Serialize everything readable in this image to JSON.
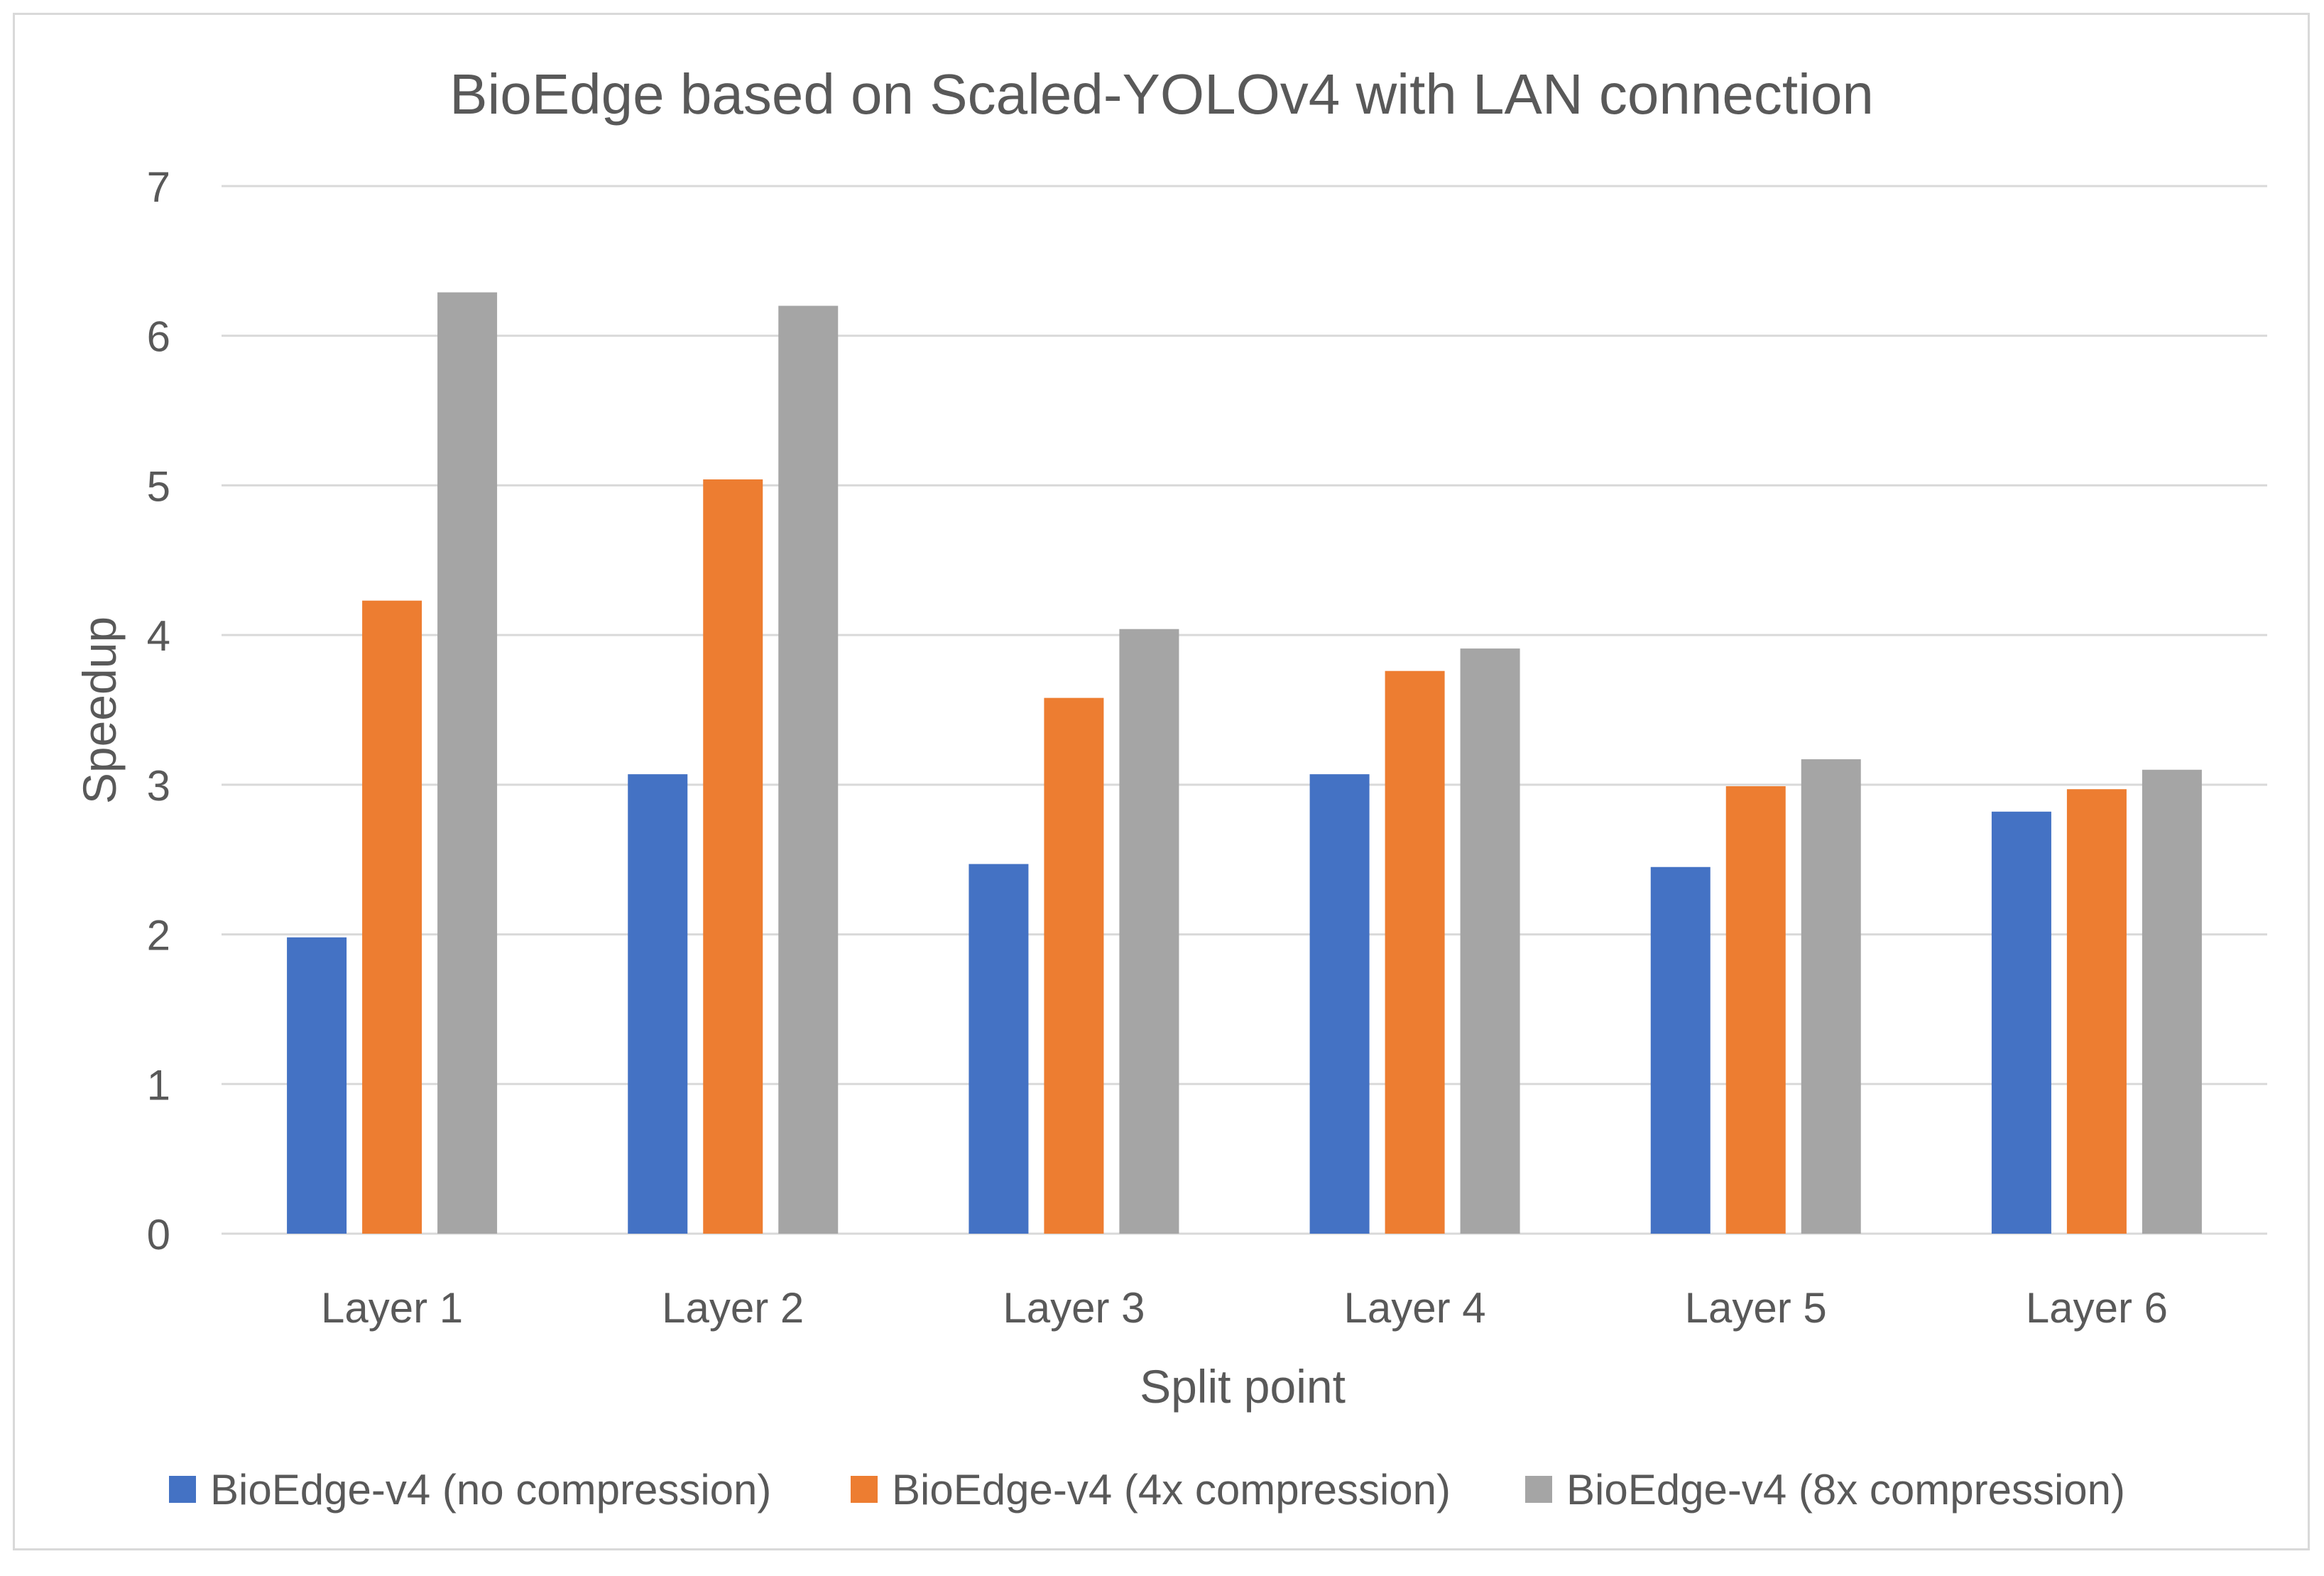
{
  "chart_data": {
    "type": "bar",
    "title": "BioEdge based on Scaled-YOLOv4 with LAN connection",
    "xlabel": "Split point",
    "ylabel": "Speedup",
    "categories": [
      "Layer 1",
      "Layer 2",
      "Layer 3",
      "Layer 4",
      "Layer 5",
      "Layer 6"
    ],
    "ylim": [
      0,
      7
    ],
    "yticks": [
      0,
      1,
      2,
      3,
      4,
      5,
      6,
      7
    ],
    "grid": true,
    "legend_position": "bottom",
    "series": [
      {
        "name": "BioEdge-v4 (no compression)",
        "color": "#4472c4",
        "values": [
          1.98,
          3.07,
          2.47,
          3.07,
          2.45,
          2.82
        ]
      },
      {
        "name": "BioEdge-v4 (4x compression)",
        "color": "#ed7d31",
        "values": [
          4.23,
          5.04,
          3.58,
          3.76,
          2.99,
          2.97
        ]
      },
      {
        "name": "BioEdge-v4 (8x compression)",
        "color": "#a5a5a5",
        "values": [
          6.29,
          6.2,
          4.04,
          3.91,
          3.17,
          3.1
        ]
      }
    ]
  }
}
